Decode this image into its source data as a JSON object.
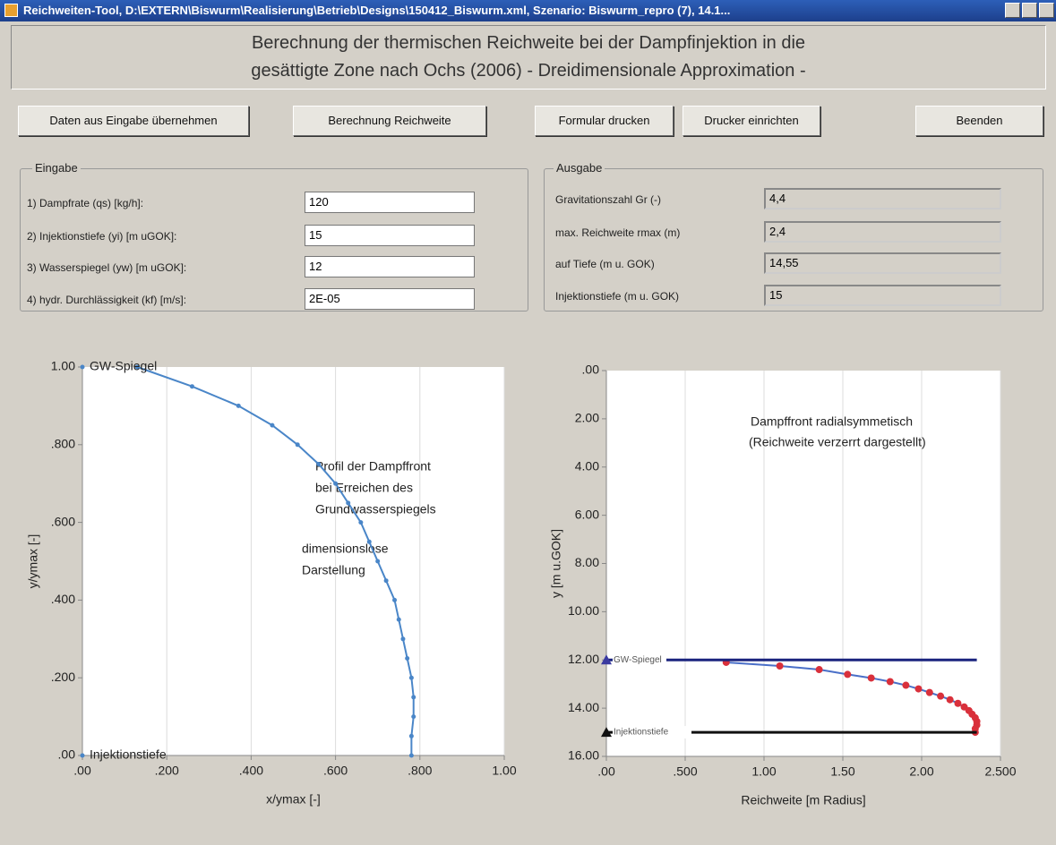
{
  "window": {
    "title": "Reichweiten-Tool, D:\\EXTERN\\Biswurm\\Realisierung\\Betrieb\\Designs\\150412_Biswurm.xml, Szenario: Biswurm_repro (7), 14.1..."
  },
  "header": {
    "lines": [
      "Berechnung der thermischen Reichweite bei der Dampfinjektion in die",
      "gesättigte Zone nach Ochs (2006) - Dreidimensionale Approximation -"
    ]
  },
  "buttons": [
    "Daten aus Eingabe übernehmen",
    "Berechnung Reichweite",
    "Formular drucken",
    "Drucker einrichten",
    "Beenden"
  ],
  "eingabe": {
    "title": "Eingabe",
    "fields": [
      {
        "label": "1) Dampfrate (qs) [kg/h]:",
        "value": "120"
      },
      {
        "label": "2) Injektionstiefe (yi) [m uGOK]:",
        "value": "15"
      },
      {
        "label": "3) Wasserspiegel (yw) [m uGOK]:",
        "value": "12"
      },
      {
        "label": "4) hydr. Durchlässigkeit (kf) [m/s]:",
        "value": "2E-05"
      }
    ]
  },
  "ausgabe": {
    "title": "Ausgabe",
    "fields": [
      {
        "label": "Gravitationszahl Gr (-)",
        "value": "4,4"
      },
      {
        "label": "max. Reichweite rmax (m)",
        "value": "2,4"
      },
      {
        "label": "auf Tiefe (m u. GOK)",
        "value": "14,55"
      },
      {
        "label": "Injektionstiefe (m u. GOK)",
        "value": "15"
      }
    ]
  },
  "chart_data": [
    {
      "type": "line",
      "x_label": "x/ymax [-]",
      "y_label": "y/ymax [-]",
      "annotations": [
        "Profil der Dampffront",
        "bei Erreichen des",
        "Grundwasserspiegels",
        "dimensionslose",
        "Darstellung"
      ],
      "xlim": [
        0,
        1
      ],
      "ylim": [
        0,
        1
      ],
      "grid": "x",
      "xticks": [
        {
          "value": 0,
          "label": ".00"
        },
        {
          "value": 0.2,
          "label": ".200"
        },
        {
          "value": 0.4,
          "label": ".400"
        },
        {
          "value": 0.6,
          "label": ".600"
        },
        {
          "value": 0.8,
          "label": ".800"
        },
        {
          "value": 1,
          "label": "1.00"
        }
      ],
      "yticks": [
        {
          "value": 0,
          "label": ".00"
        },
        {
          "value": 0.2,
          "label": ".200"
        },
        {
          "value": 0.4,
          "label": ".400"
        },
        {
          "value": 0.6,
          "label": ".600"
        },
        {
          "value": 0.8,
          "label": ".800"
        },
        {
          "value": 1,
          "label": "1.00"
        }
      ],
      "series": [
        {
          "color": "#4a86c8",
          "marker": "circle",
          "marker_color": "#4a86c8",
          "x": [
            0.13,
            0.26,
            0.37,
            0.45,
            0.51,
            0.56,
            0.6,
            0.63,
            0.66,
            0.68,
            0.7,
            0.72,
            0.74,
            0.75,
            0.76,
            0.77,
            0.78,
            0.785,
            0.785,
            0.78,
            0.78
          ],
          "values": [
            1.0,
            0.95,
            0.9,
            0.85,
            0.8,
            0.75,
            0.7,
            0.65,
            0.6,
            0.55,
            0.5,
            0.45,
            0.4,
            0.35,
            0.3,
            0.25,
            0.2,
            0.15,
            0.1,
            0.05,
            0.0
          ]
        },
        {
          "name": "GW-Spiegel",
          "color": "#4a86c8",
          "marker": "circle",
          "marker_color": "#4a86c8",
          "x": [
            0
          ],
          "values": [
            1
          ]
        },
        {
          "name": "Injektionstiefe",
          "color": "#4a86c8",
          "marker": "circle",
          "marker_color": "#4a86c8",
          "x": [
            0
          ],
          "values": [
            0
          ]
        }
      ]
    },
    {
      "type": "line",
      "x_label": "Reichweite [m Radius]",
      "y_label": "y [m u.GOK]",
      "annotations": [
        "Dampffront radialsymmetisch",
        "(Reichweite verzerrt dargestellt)"
      ],
      "xlim": [
        0,
        2.5
      ],
      "ylim": [
        0,
        16
      ],
      "y_inverted": true,
      "grid": "x",
      "xticks": [
        {
          "value": 0,
          "label": ".00"
        },
        {
          "value": 0.5,
          "label": ".500"
        },
        {
          "value": 1,
          "label": "1.00"
        },
        {
          "value": 1.5,
          "label": "1.50"
        },
        {
          "value": 2,
          "label": "2.00"
        },
        {
          "value": 2.5,
          "label": "2.500"
        }
      ],
      "yticks": [
        {
          "value": 0,
          "label": ".00"
        },
        {
          "value": 2,
          "label": "2.00"
        },
        {
          "value": 4,
          "label": "4.00"
        },
        {
          "value": 6,
          "label": "6.00"
        },
        {
          "value": 8,
          "label": "8.00"
        },
        {
          "value": 10,
          "label": "10.00"
        },
        {
          "value": 12,
          "label": "12.00"
        },
        {
          "value": 14,
          "label": "14.00"
        },
        {
          "value": 16,
          "label": "16.00"
        }
      ],
      "series": [
        {
          "color": "#4a6fc8",
          "marker": "circle",
          "marker_color": "#d9303b",
          "x": [
            0.76,
            1.1,
            1.35,
            1.53,
            1.68,
            1.8,
            1.9,
            1.98,
            2.05,
            2.12,
            2.18,
            2.23,
            2.27,
            2.3,
            2.32,
            2.34,
            2.35,
            2.35,
            2.34,
            2.34
          ],
          "values": [
            12.1,
            12.25,
            12.4,
            12.6,
            12.75,
            12.9,
            13.05,
            13.2,
            13.35,
            13.5,
            13.65,
            13.8,
            13.95,
            14.1,
            14.25,
            14.4,
            14.55,
            14.7,
            14.85,
            15.0
          ]
        },
        {
          "name": "GW-Spiegel",
          "color": "#1a237e",
          "marker": "triangle",
          "marker_color": "#3a3aa0",
          "x": [
            0,
            2.35
          ],
          "values": [
            12,
            12
          ]
        },
        {
          "name": "Injektionstiefe",
          "color": "#111111",
          "marker": "triangle",
          "marker_color": "#111111",
          "x": [
            0,
            2.35
          ],
          "values": [
            15,
            15
          ]
        }
      ]
    }
  ]
}
